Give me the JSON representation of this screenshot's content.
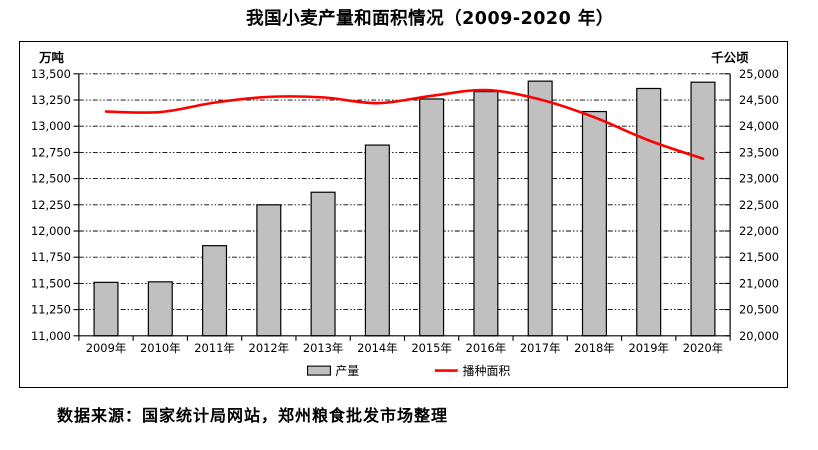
{
  "title": "我国小麦产量和面积情况（2009-2020 年）",
  "source_note": "数据来源：国家统计局网站，郑州粮食批发市场整理",
  "chart_data": {
    "type": "bar",
    "title": "我国小麦产量和面积情况（2009-2020 年）",
    "categories": [
      "2009年",
      "2010年",
      "2011年",
      "2012年",
      "2013年",
      "2014年",
      "2015年",
      "2016年",
      "2017年",
      "2018年",
      "2019年",
      "2020年"
    ],
    "series": [
      {
        "name": "产量",
        "type": "bar",
        "axis": "left",
        "unit": "万吨",
        "color": "#c0c0c0",
        "border_color": "#000000",
        "values": [
          11510,
          11515,
          11860,
          12250,
          12370,
          12820,
          13260,
          13330,
          13430,
          13140,
          13360,
          13420
        ]
      },
      {
        "name": "播种面积",
        "type": "line",
        "axis": "right",
        "unit": "千公顷",
        "color": "#ff0000",
        "values": [
          24280,
          24270,
          24450,
          24560,
          24550,
          24440,
          24580,
          24690,
          24510,
          24170,
          23730,
          23380
        ]
      }
    ],
    "left_axis": {
      "label": "万吨",
      "min": 11000,
      "max": 13500,
      "step": 250,
      "tick_labels": [
        "13,500",
        "13,250",
        "13,000",
        "12,750",
        "12,500",
        "12,250",
        "12,000",
        "11,750",
        "11,500",
        "11,250",
        "11,000"
      ]
    },
    "right_axis": {
      "label": "千公顷",
      "min": 20000,
      "max": 25000,
      "step": 500,
      "tick_labels": [
        "25,000",
        "24,500",
        "24,000",
        "23,500",
        "23,000",
        "22,500",
        "22,000",
        "21,500",
        "21,000",
        "20,500",
        "20,000"
      ]
    },
    "legend": {
      "position": "bottom",
      "items": [
        "产量",
        "播种面积"
      ]
    },
    "grid": "horizontal dash-dot",
    "line_smooth": true
  }
}
